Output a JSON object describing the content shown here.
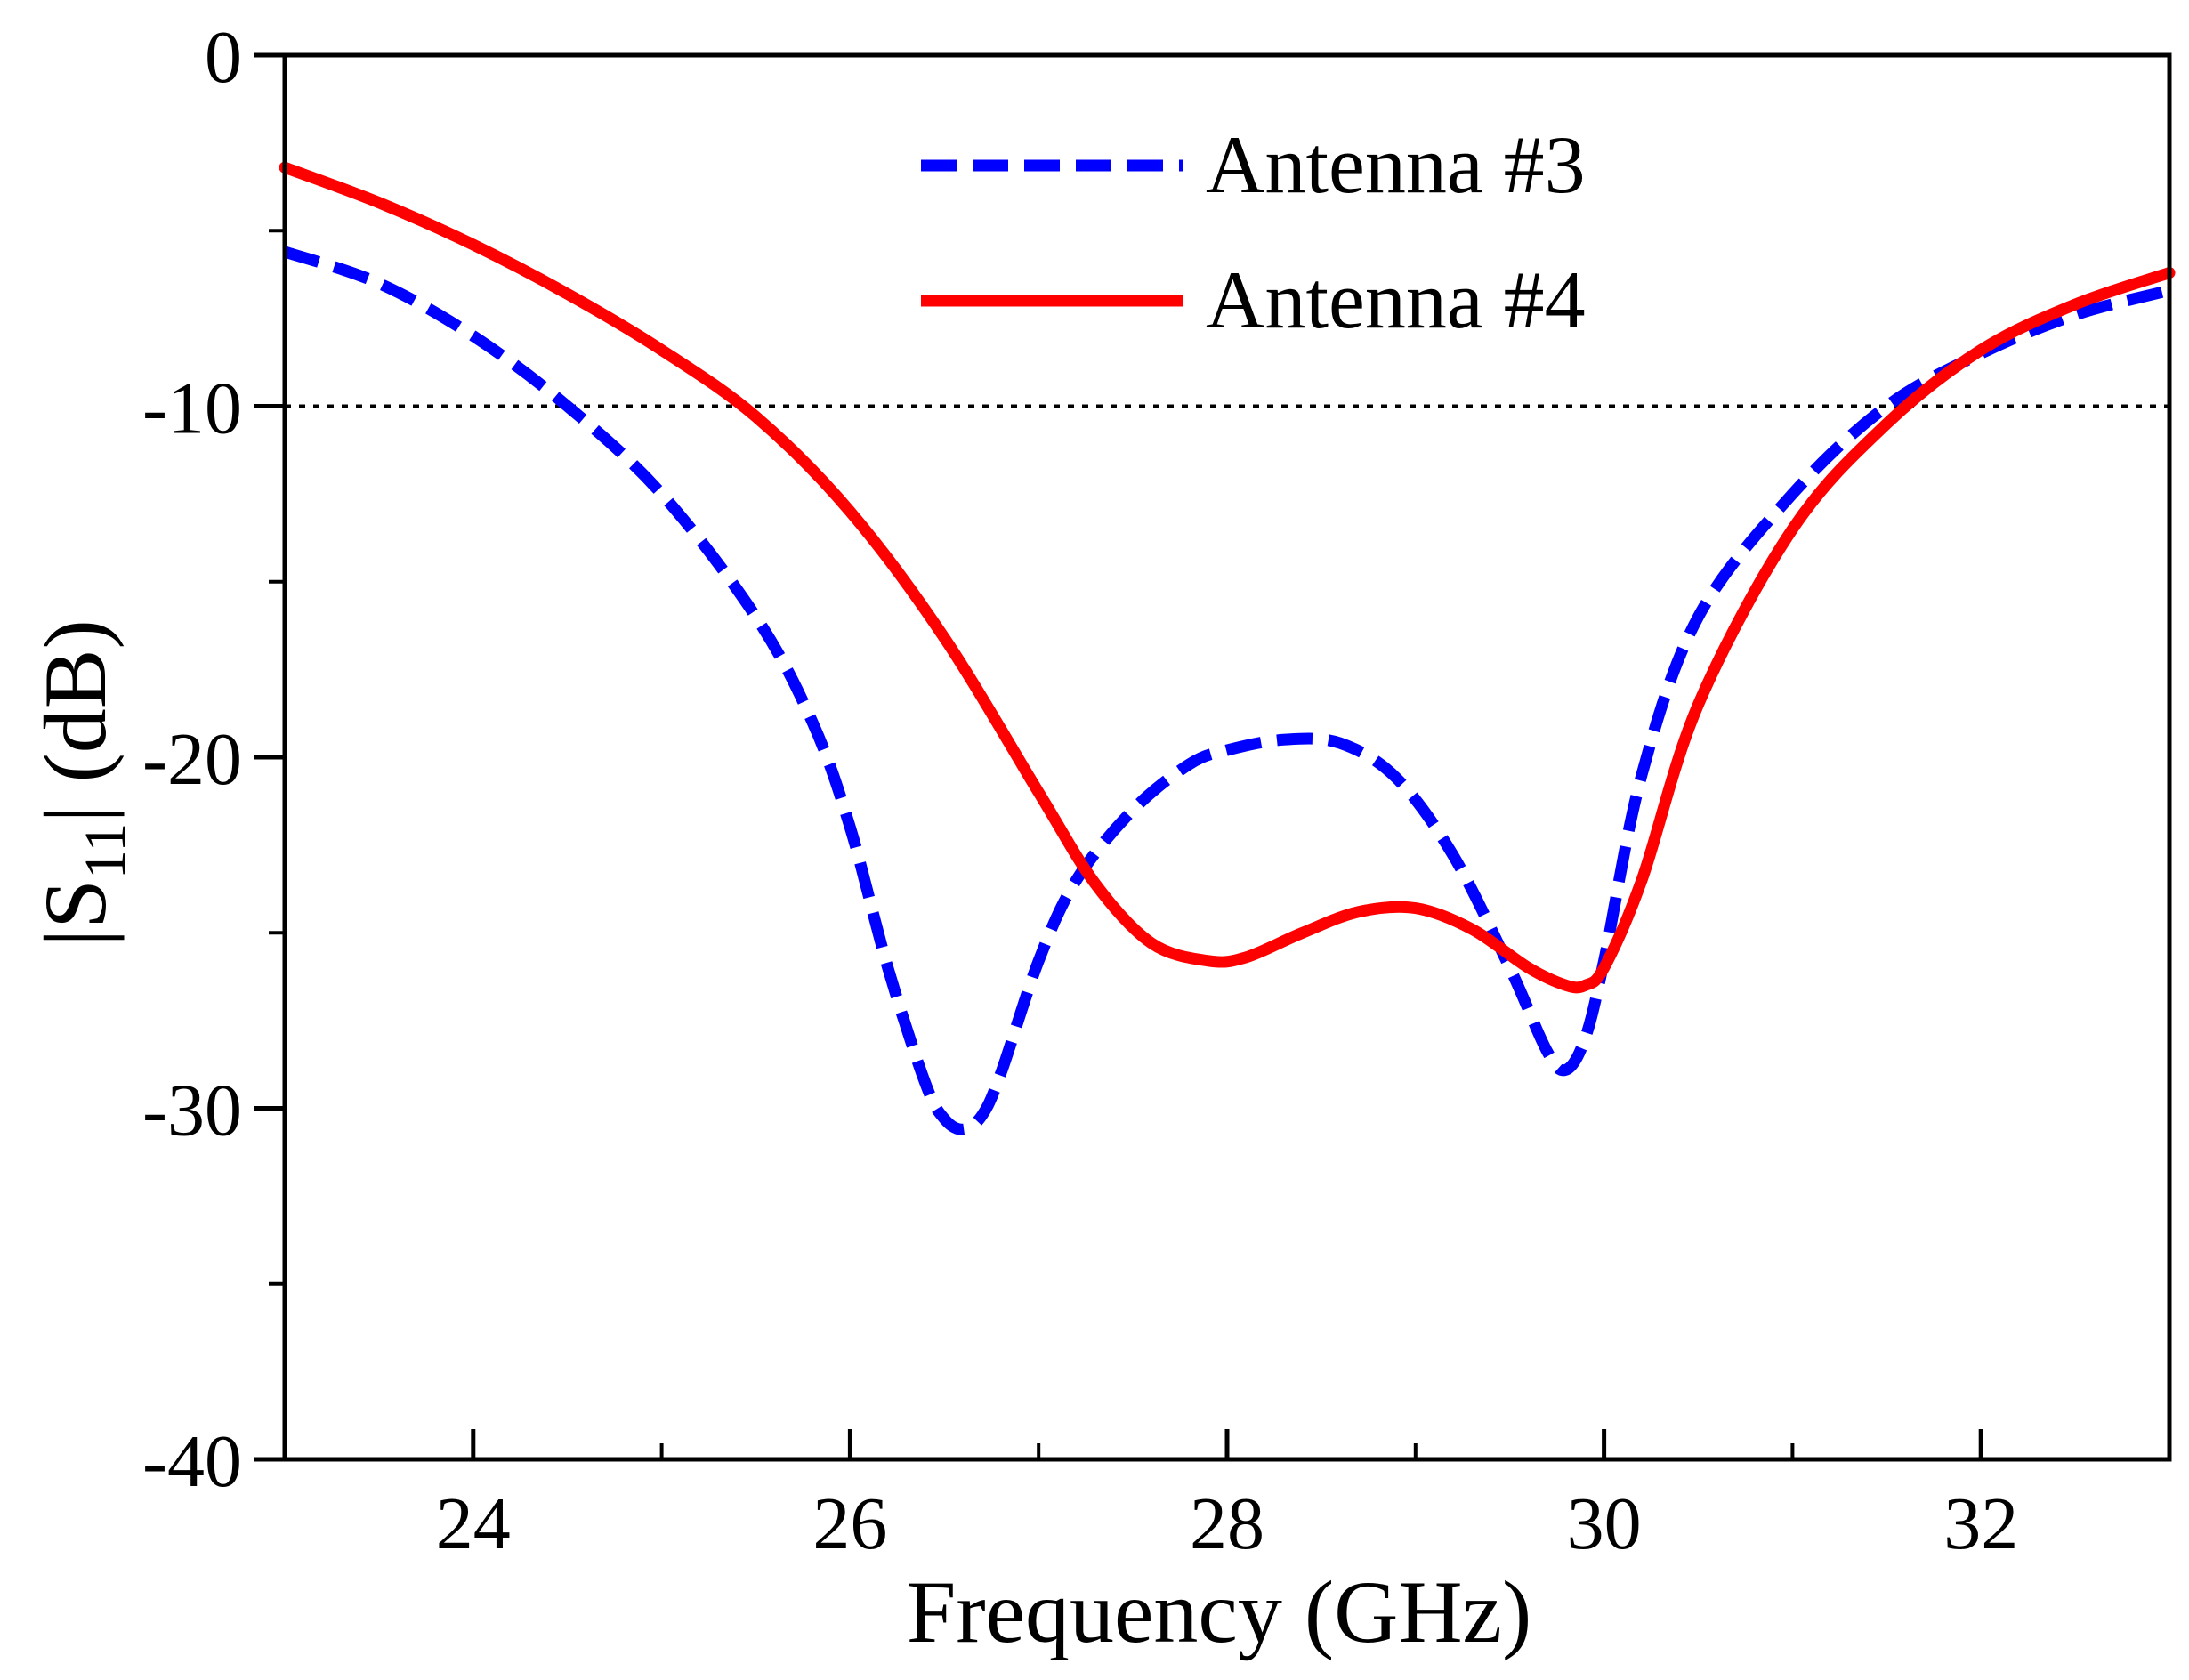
{
  "chart_data": {
    "type": "line",
    "xlabel": "Frequency (GHz)",
    "ylabel_main": "|S",
    "ylabel_sub": "11",
    "ylabel_rest": "| (dB)",
    "xlim": [
      23,
      33
    ],
    "ylim": [
      -40,
      0
    ],
    "xticks_major": [
      24,
      26,
      28,
      30,
      32
    ],
    "xtick_labels": [
      "24",
      "26",
      "28",
      "30",
      "32"
    ],
    "xticks_minor": [
      25,
      27,
      29,
      31
    ],
    "yticks_major": [
      0,
      -10,
      -20,
      -30,
      -40
    ],
    "ytick_labels": [
      "0",
      "-10",
      "-20",
      "-30",
      "-40"
    ],
    "yticks_minor": [
      -5,
      -15,
      -25,
      -35
    ],
    "reference_line": {
      "y": -10,
      "style": "dotted"
    },
    "legend_position": "top-center",
    "series": [
      {
        "name": "Antenna #3",
        "color": "#0000ff",
        "style": "dashed",
        "x": [
          23.0,
          23.5,
          24.0,
          24.5,
          25.0,
          25.5,
          25.8,
          26.0,
          26.2,
          26.4,
          26.5,
          26.6,
          26.7,
          26.8,
          27.0,
          27.2,
          27.5,
          27.8,
          28.0,
          28.3,
          28.6,
          28.9,
          29.2,
          29.5,
          29.7,
          29.8,
          29.9,
          30.0,
          30.2,
          30.5,
          31.0,
          31.5,
          32.0,
          32.5,
          33.0
        ],
        "values": [
          -5.6,
          -6.5,
          -8.0,
          -10.0,
          -12.5,
          -16.0,
          -19.0,
          -22.0,
          -26.0,
          -29.3,
          -30.3,
          -30.6,
          -30.2,
          -29.0,
          -25.8,
          -23.5,
          -21.5,
          -20.2,
          -19.8,
          -19.5,
          -19.6,
          -20.6,
          -22.8,
          -26.0,
          -28.4,
          -28.9,
          -28.0,
          -25.8,
          -20.5,
          -16.0,
          -12.5,
          -10.0,
          -8.5,
          -7.4,
          -6.7
        ]
      },
      {
        "name": "Antenna #4",
        "color": "#ff0000",
        "style": "solid",
        "x": [
          23.0,
          23.5,
          24.0,
          24.5,
          25.0,
          25.5,
          26.0,
          26.5,
          27.0,
          27.3,
          27.6,
          27.9,
          28.1,
          28.4,
          28.7,
          29.0,
          29.3,
          29.6,
          29.8,
          29.9,
          30.0,
          30.2,
          30.5,
          31.0,
          31.5,
          32.0,
          32.5,
          33.0
        ],
        "values": [
          -3.2,
          -4.2,
          -5.4,
          -6.8,
          -8.4,
          -10.3,
          -13.0,
          -16.6,
          -21.0,
          -23.6,
          -25.3,
          -25.8,
          -25.7,
          -25.0,
          -24.4,
          -24.3,
          -24.9,
          -26.0,
          -26.5,
          -26.5,
          -26.0,
          -23.5,
          -18.5,
          -13.5,
          -10.5,
          -8.4,
          -7.1,
          -6.2
        ]
      }
    ]
  }
}
